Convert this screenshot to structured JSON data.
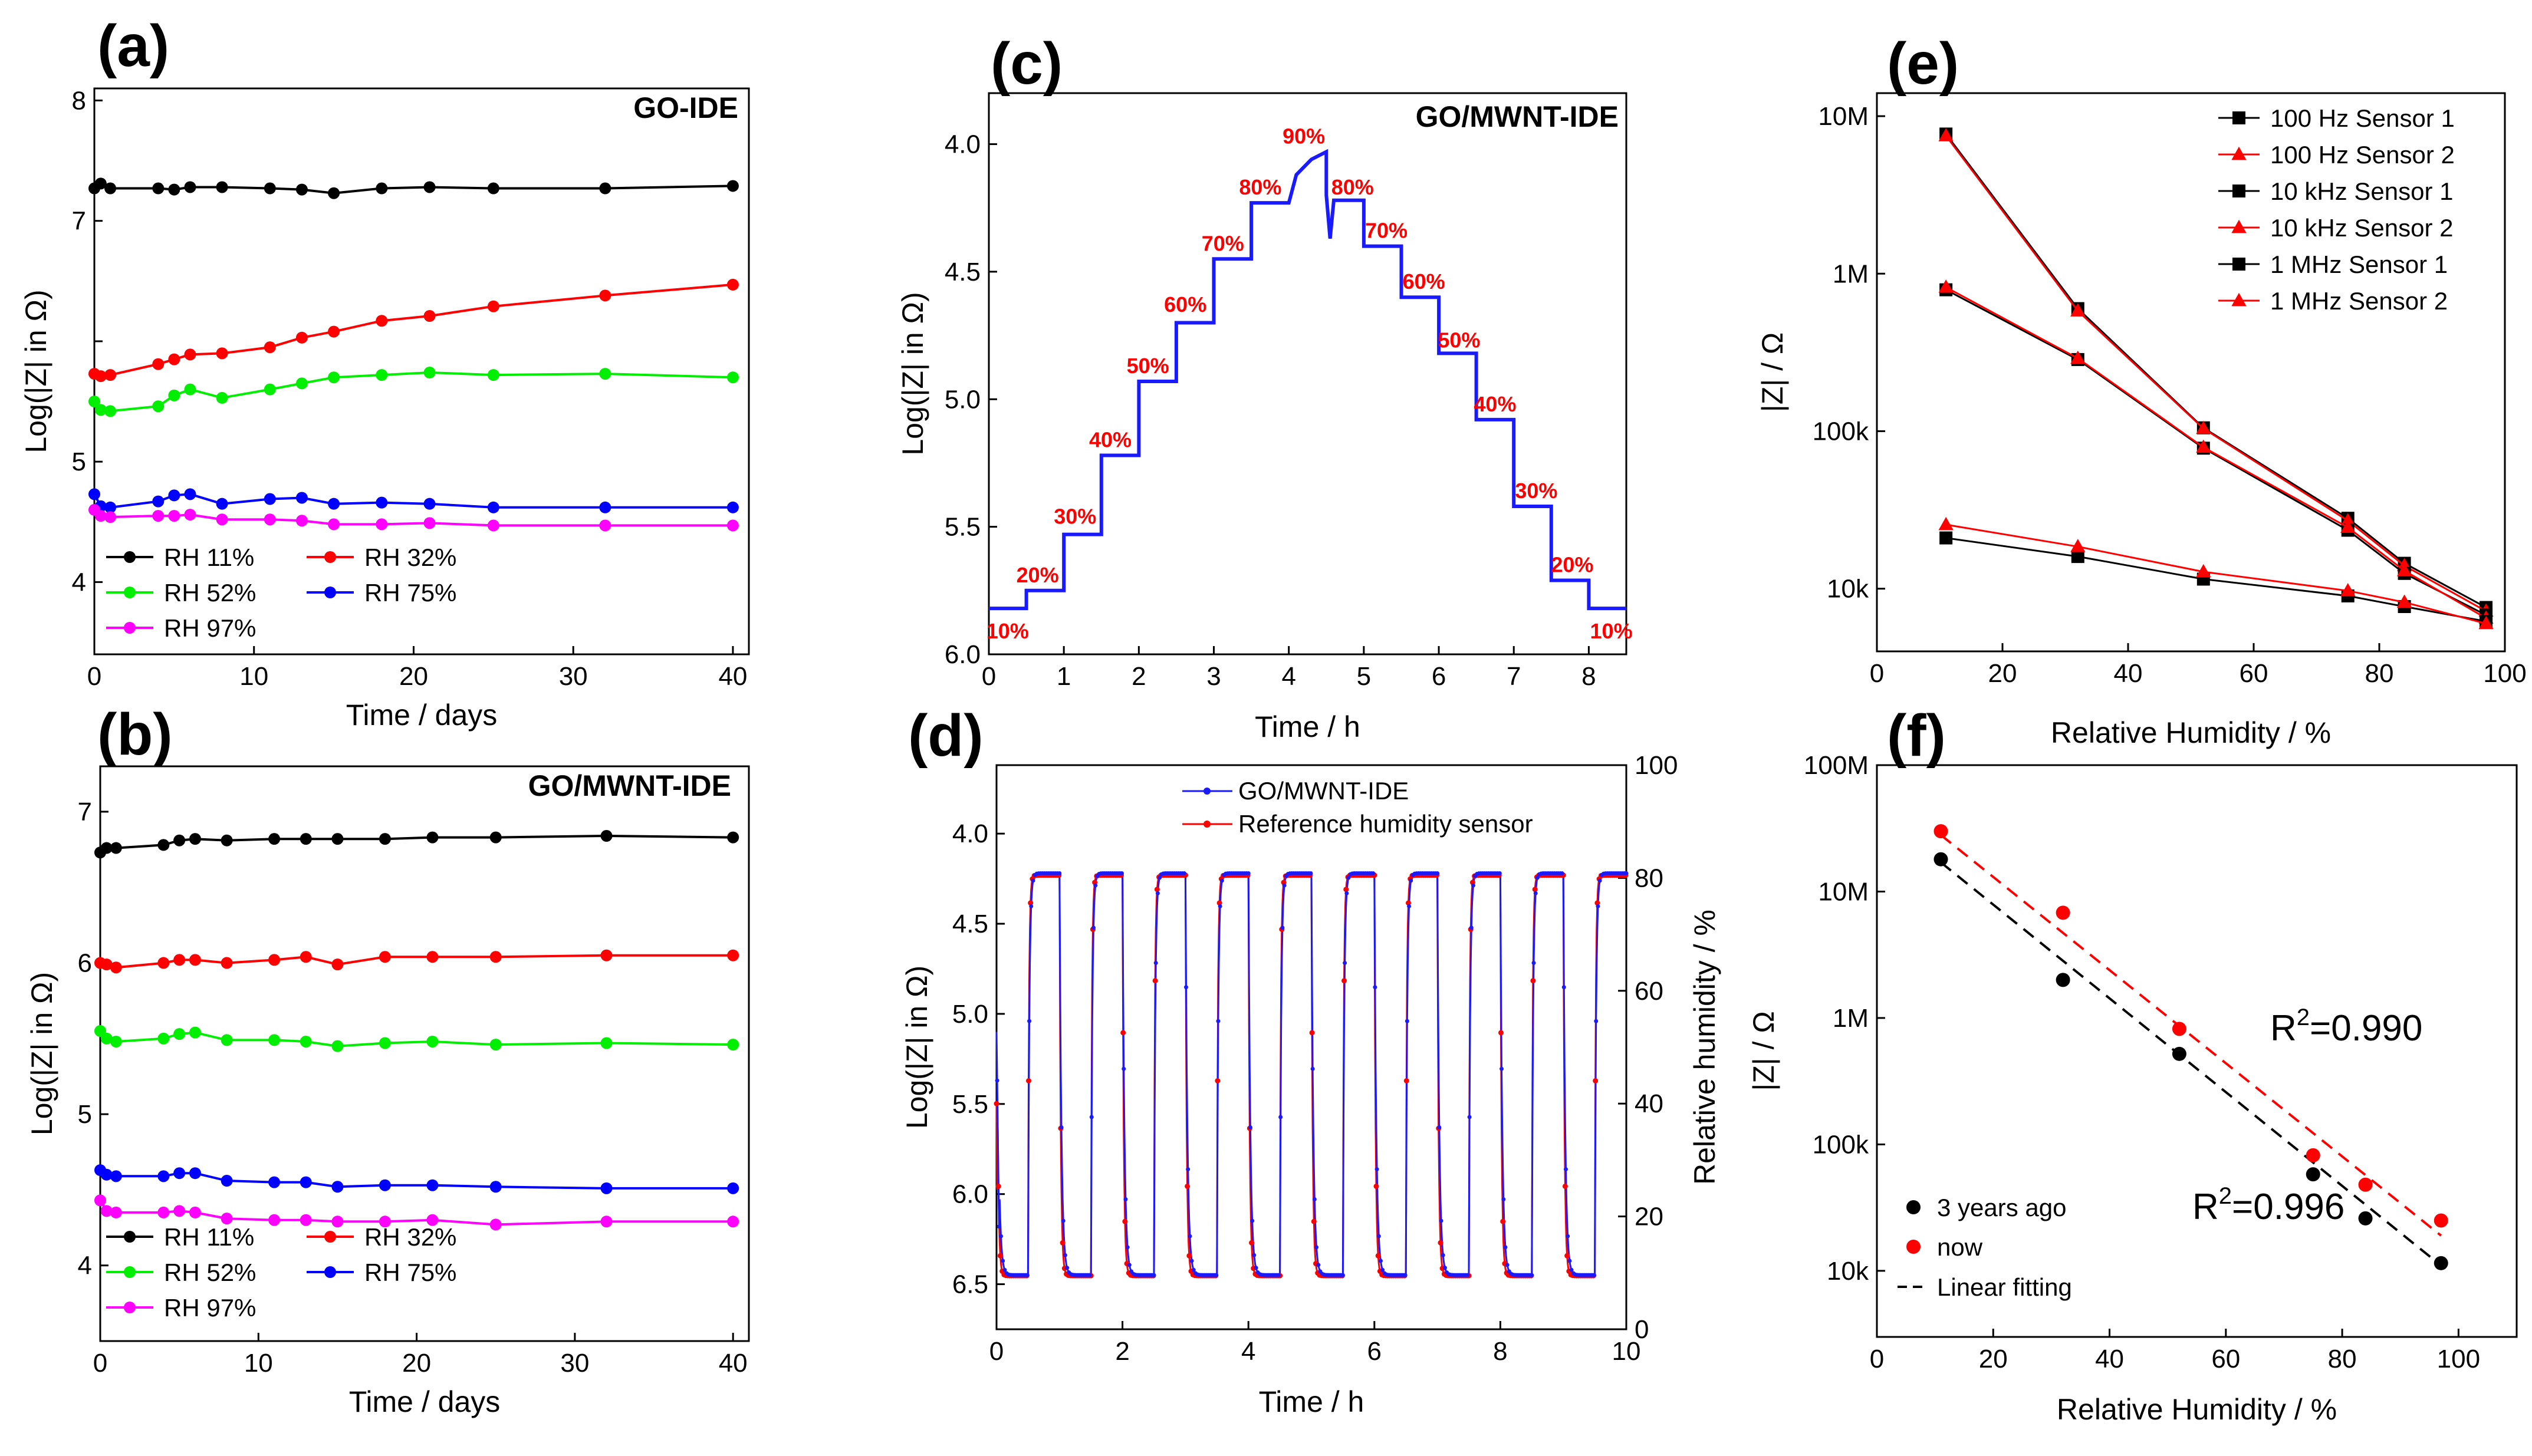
{
  "colors": {
    "black": "#000000",
    "red": "#ff0000",
    "green": "#00ee00",
    "blue": "#0000ff",
    "magenta": "#ff00ff",
    "trace_blue": "#1a1aff"
  },
  "chart_data": [
    {
      "id": "a",
      "type": "line",
      "label": "(a)",
      "annotation": "GO-IDE",
      "xlabel": "Time / days",
      "ylabel": "Log(|Z| in Ω)",
      "xlim": [
        0,
        41
      ],
      "ylim": [
        3.4,
        8.1
      ],
      "xticks": [
        "0",
        "10",
        "20",
        "30",
        "40"
      ],
      "yticks": [
        "4",
        "5",
        "",
        "7",
        "8"
      ],
      "x": [
        0,
        0.4,
        1,
        4,
        5,
        6,
        8,
        11,
        13,
        15,
        18,
        21,
        25,
        32,
        40
      ],
      "series": [
        {
          "name": "RH 11%",
          "color": "#000000",
          "values": [
            7.27,
            7.31,
            7.27,
            7.27,
            7.26,
            7.28,
            7.28,
            7.27,
            7.26,
            7.23,
            7.27,
            7.28,
            7.27,
            7.27,
            7.29
          ]
        },
        {
          "name": "RH 32%",
          "color": "#ff0000",
          "values": [
            5.73,
            5.71,
            5.72,
            5.81,
            5.85,
            5.89,
            5.9,
            5.95,
            6.03,
            6.08,
            6.17,
            6.21,
            6.29,
            6.38,
            6.47
          ]
        },
        {
          "name": "RH 52%",
          "color": "#00ee00",
          "values": [
            5.5,
            5.43,
            5.42,
            5.46,
            5.55,
            5.6,
            5.53,
            5.6,
            5.65,
            5.7,
            5.72,
            5.74,
            5.72,
            5.73,
            5.7
          ]
        },
        {
          "name": "RH 75%",
          "color": "#0000ff",
          "values": [
            4.73,
            4.63,
            4.62,
            4.67,
            4.72,
            4.73,
            4.65,
            4.69,
            4.7,
            4.65,
            4.66,
            4.65,
            4.62,
            4.62,
            4.62
          ]
        },
        {
          "name": "RH 97%",
          "color": "#ff00ff",
          "values": [
            4.6,
            4.55,
            4.54,
            4.55,
            4.55,
            4.56,
            4.52,
            4.52,
            4.51,
            4.48,
            4.48,
            4.49,
            4.47,
            4.47,
            4.47
          ]
        }
      ]
    },
    {
      "id": "b",
      "type": "line",
      "label": "(b)",
      "annotation": "GO/MWNT-IDE",
      "xlabel": "Time / days",
      "ylabel": "Log(|Z| in Ω)",
      "xlim": [
        0,
        41
      ],
      "ylim": [
        3.5,
        7.3
      ],
      "xticks": [
        "0",
        "10",
        "20",
        "30",
        "40"
      ],
      "yticks": [
        "4",
        "5",
        "6",
        "7"
      ],
      "x": [
        0,
        0.4,
        1,
        4,
        5,
        6,
        8,
        11,
        13,
        15,
        18,
        21,
        25,
        32,
        40
      ],
      "series": [
        {
          "name": "RH 11%",
          "color": "#000000",
          "values": [
            6.73,
            6.76,
            6.76,
            6.78,
            6.81,
            6.82,
            6.81,
            6.82,
            6.82,
            6.82,
            6.82,
            6.83,
            6.83,
            6.84,
            6.83
          ]
        },
        {
          "name": "RH 32%",
          "color": "#ff0000",
          "values": [
            6.0,
            5.99,
            5.97,
            6.0,
            6.02,
            6.02,
            6.0,
            6.02,
            6.04,
            5.99,
            6.04,
            6.04,
            6.04,
            6.05,
            6.05
          ]
        },
        {
          "name": "RH 52%",
          "color": "#00ee00",
          "values": [
            5.55,
            5.5,
            5.48,
            5.5,
            5.53,
            5.54,
            5.49,
            5.49,
            5.48,
            5.45,
            5.47,
            5.48,
            5.46,
            5.47,
            5.46
          ]
        },
        {
          "name": "RH 75%",
          "color": "#0000ff",
          "values": [
            4.63,
            4.6,
            4.59,
            4.59,
            4.61,
            4.61,
            4.56,
            4.55,
            4.55,
            4.52,
            4.53,
            4.53,
            4.52,
            4.51,
            4.51
          ]
        },
        {
          "name": "RH 97%",
          "color": "#ff00ff",
          "values": [
            4.43,
            4.36,
            4.35,
            4.35,
            4.36,
            4.35,
            4.31,
            4.3,
            4.3,
            4.29,
            4.29,
            4.3,
            4.27,
            4.29,
            4.29
          ]
        }
      ]
    },
    {
      "id": "c",
      "type": "line",
      "label": "(c)",
      "annotation": "GO/MWNT-IDE",
      "xlabel": "Time / h",
      "ylabel": "Log(|Z| in Ω)",
      "xlim": [
        0,
        8.5
      ],
      "ylim": [
        6.0,
        3.8
      ],
      "y_inverted": true,
      "xticks": [
        "0",
        "1",
        "2",
        "3",
        "4",
        "5",
        "6",
        "7",
        "8"
      ],
      "yticks": [
        "4.0",
        "4.5",
        "5.0",
        "5.5",
        "6.0"
      ],
      "series": [
        {
          "name": "GO/MWNT-IDE",
          "color": "#1a1aff",
          "x": [
            0,
            0.5,
            0.5,
            1,
            1,
            1.5,
            1.5,
            2,
            2,
            2.5,
            2.5,
            3,
            3,
            3.5,
            3.5,
            4,
            4.1,
            4.3,
            4.5,
            4.5,
            4.55,
            4.6,
            4.6,
            5,
            5,
            5.5,
            5.5,
            6,
            6,
            6.5,
            6.5,
            7,
            7,
            7.5,
            7.5,
            8,
            8,
            8.5
          ],
          "values": [
            5.82,
            5.82,
            5.75,
            5.75,
            5.53,
            5.53,
            5.22,
            5.22,
            4.93,
            4.93,
            4.7,
            4.7,
            4.45,
            4.45,
            4.23,
            4.23,
            4.12,
            4.06,
            4.03,
            4.2,
            4.37,
            4.22,
            4.22,
            4.22,
            4.4,
            4.4,
            4.6,
            4.6,
            4.82,
            4.82,
            5.08,
            5.08,
            5.42,
            5.42,
            5.71,
            5.71,
            5.82,
            5.82
          ]
        }
      ],
      "step_labels": [
        {
          "text": "10%",
          "x": 0.25,
          "y": 5.91
        },
        {
          "text": "20%",
          "x": 0.65,
          "y": 5.69
        },
        {
          "text": "30%",
          "x": 1.15,
          "y": 5.46
        },
        {
          "text": "40%",
          "x": 1.62,
          "y": 5.16
        },
        {
          "text": "50%",
          "x": 2.12,
          "y": 4.87
        },
        {
          "text": "60%",
          "x": 2.62,
          "y": 4.63
        },
        {
          "text": "70%",
          "x": 3.12,
          "y": 4.39
        },
        {
          "text": "80%",
          "x": 3.62,
          "y": 4.17
        },
        {
          "text": "90%",
          "x": 4.2,
          "y": 3.97
        },
        {
          "text": "80%",
          "x": 4.85,
          "y": 4.17
        },
        {
          "text": "70%",
          "x": 5.3,
          "y": 4.34
        },
        {
          "text": "60%",
          "x": 5.8,
          "y": 4.54
        },
        {
          "text": "50%",
          "x": 6.27,
          "y": 4.77
        },
        {
          "text": "40%",
          "x": 6.75,
          "y": 5.02
        },
        {
          "text": "30%",
          "x": 7.3,
          "y": 5.36
        },
        {
          "text": "20%",
          "x": 7.78,
          "y": 5.65
        },
        {
          "text": "10%",
          "x": 8.3,
          "y": 5.91
        }
      ]
    },
    {
      "id": "d",
      "type": "line",
      "label": "(d)",
      "xlabel": "Time / h",
      "ylabel": "Log(|Z| in Ω)",
      "y2label": "Relative humidity / %",
      "xlim": [
        0,
        10
      ],
      "ylim": [
        6.75,
        3.62
      ],
      "y_inverted": true,
      "y2lim": [
        0,
        100
      ],
      "xticks": [
        "0",
        "2",
        "4",
        "6",
        "8",
        "10"
      ],
      "yticks": [
        "4.0",
        "4.5",
        "5.0",
        "5.5",
        "6.0",
        "6.5"
      ],
      "y2ticks": [
        "0",
        "20",
        "40",
        "60",
        "80",
        "100"
      ],
      "cycle_period_h": 1.0,
      "cycle_count": 10,
      "high_start_h": 0.5,
      "high_end_h": 1.0,
      "low_value": 6.45,
      "high_value": 4.22,
      "series": [
        {
          "name": "GO/MWNT-IDE",
          "color": "#1a1aff",
          "unit": "Log(|Z| in Ω)"
        },
        {
          "name": "Reference humidity sensor",
          "color": "#ff0000",
          "unit": "%",
          "low_rh": 9.5,
          "high_rh": 80.5
        }
      ]
    },
    {
      "id": "e",
      "type": "line",
      "label": "(e)",
      "xlabel": "Relative Humidity / %",
      "ylabel": "|Z| / Ω",
      "yscale": "log",
      "xlim": [
        0,
        100
      ],
      "ylim": [
        4000,
        14000000
      ],
      "xticks": [
        "0",
        "20",
        "40",
        "60",
        "80",
        "100"
      ],
      "yticks": [
        "10k",
        "100k",
        "1M",
        "10M"
      ],
      "x": [
        11,
        32,
        52,
        75,
        84,
        97
      ],
      "series": [
        {
          "name": "100 Hz Sensor 1",
          "color": "#000000",
          "marker": "square",
          "values": [
            7700000,
            600000,
            105000,
            28000,
            14500,
            7600
          ]
        },
        {
          "name": "100 Hz Sensor 2",
          "color": "#ff0000",
          "marker": "triangle",
          "values": [
            7500000,
            580000,
            104000,
            27000,
            14000,
            7200
          ]
        },
        {
          "name": "10 kHz Sensor 1",
          "color": "#000000",
          "marker": "square",
          "values": [
            790000,
            285000,
            78000,
            23500,
            12500,
            6800
          ]
        },
        {
          "name": "10 kHz Sensor 2",
          "color": "#ff0000",
          "marker": "triangle",
          "values": [
            820000,
            290000,
            79000,
            24500,
            13000,
            6500
          ]
        },
        {
          "name": "1 MHz Sensor 1",
          "color": "#000000",
          "marker": "square",
          "values": [
            21000,
            16000,
            11500,
            9000,
            7700,
            6200
          ]
        },
        {
          "name": "1 MHz Sensor 2",
          "color": "#ff0000",
          "marker": "triangle",
          "values": [
            25500,
            18500,
            12800,
            9700,
            8200,
            6000
          ]
        }
      ]
    },
    {
      "id": "f",
      "type": "scatter",
      "label": "(f)",
      "xlabel": "Relative Humidity / %",
      "ylabel": "|Z| / Ω",
      "yscale": "log",
      "xlim": [
        0,
        110
      ],
      "ylim": [
        3000,
        100000000
      ],
      "xticks": [
        "0",
        "20",
        "40",
        "60",
        "80",
        "100"
      ],
      "yticks": [
        "10k",
        "100k",
        "1M",
        "10M",
        "100M"
      ],
      "x": [
        11,
        32,
        52,
        75,
        84,
        97
      ],
      "series": [
        {
          "name": "3 years ago",
          "color": "#000000",
          "values": [
            18000000,
            2000000,
            520000,
            58000,
            26000,
            11500
          ],
          "fit": [
            [
              11,
              17000000
            ],
            [
              97,
              11000
            ]
          ],
          "r2_label": "R",
          "r2_value": "=0.996"
        },
        {
          "name": "now",
          "color": "#ff0000",
          "values": [
            30000000,
            6800000,
            820000,
            82000,
            48000,
            25000
          ],
          "fit": [
            [
              11,
              28000000
            ],
            [
              97,
              19000
            ]
          ],
          "r2_label": "R",
          "r2_value": "=0.990"
        }
      ],
      "fit_legend": "Linear fitting"
    }
  ]
}
